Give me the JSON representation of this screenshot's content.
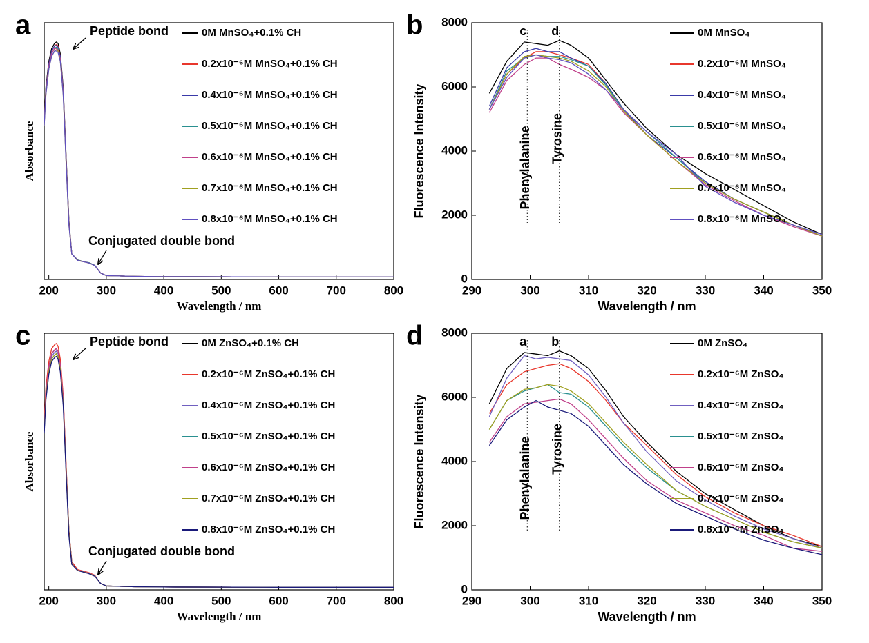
{
  "chart_data": [
    {
      "type": "line",
      "panel": "a",
      "xlabel": "Wavelength / nm",
      "ylabel": "Absorbance",
      "xlim": [
        192,
        800
      ],
      "xticks": [
        200,
        300,
        400,
        500,
        600,
        700,
        800
      ],
      "ylim": [
        0,
        1
      ],
      "annotations": [
        "Peptide bond",
        "Conjugated double bond"
      ],
      "x": [
        192,
        195,
        200,
        205,
        210,
        213,
        216,
        220,
        225,
        230,
        235,
        240,
        250,
        260,
        270,
        280,
        285,
        290,
        300,
        350,
        400,
        600,
        800
      ],
      "series": [
        {
          "name": "0M MnSO₄+0.1% CH",
          "color": "#000000",
          "values": [
            0.63,
            0.75,
            0.85,
            0.9,
            0.92,
            0.925,
            0.92,
            0.88,
            0.75,
            0.49,
            0.23,
            0.1,
            0.076,
            0.07,
            0.065,
            0.055,
            0.04,
            0.025,
            0.015,
            0.012,
            0.011,
            0.01,
            0.01
          ]
        },
        {
          "name": "0.2x10⁻⁶M MnSO₄+0.1% CH",
          "color": "#e8372c",
          "values": [
            0.62,
            0.74,
            0.84,
            0.89,
            0.91,
            0.915,
            0.91,
            0.87,
            0.74,
            0.48,
            0.22,
            0.1,
            0.075,
            0.07,
            0.065,
            0.055,
            0.04,
            0.025,
            0.015,
            0.012,
            0.011,
            0.01,
            0.01
          ]
        },
        {
          "name": "0.4x10⁻⁶M MnSO₄+0.1% CH",
          "color": "#3a3aa8",
          "values": [
            0.62,
            0.74,
            0.84,
            0.89,
            0.91,
            0.912,
            0.905,
            0.87,
            0.74,
            0.48,
            0.22,
            0.1,
            0.075,
            0.07,
            0.065,
            0.055,
            0.04,
            0.025,
            0.015,
            0.012,
            0.011,
            0.01,
            0.01
          ]
        },
        {
          "name": "0.5x10⁻⁶M MnSO₄+0.1% CH",
          "color": "#2a9090",
          "values": [
            0.61,
            0.73,
            0.83,
            0.88,
            0.9,
            0.905,
            0.9,
            0.86,
            0.73,
            0.47,
            0.22,
            0.1,
            0.075,
            0.07,
            0.065,
            0.055,
            0.04,
            0.025,
            0.015,
            0.012,
            0.011,
            0.01,
            0.01
          ]
        },
        {
          "name": "0.6x10⁻⁶M MnSO₄+0.1% CH",
          "color": "#c0408a",
          "values": [
            0.61,
            0.73,
            0.83,
            0.88,
            0.9,
            0.9,
            0.895,
            0.86,
            0.73,
            0.47,
            0.22,
            0.1,
            0.074,
            0.069,
            0.064,
            0.054,
            0.04,
            0.025,
            0.015,
            0.012,
            0.011,
            0.01,
            0.01
          ]
        },
        {
          "name": "0.7x10⁻⁶M MnSO₄+0.1% CH",
          "color": "#a0a020",
          "values": [
            0.6,
            0.72,
            0.82,
            0.87,
            0.89,
            0.895,
            0.89,
            0.85,
            0.72,
            0.46,
            0.21,
            0.1,
            0.074,
            0.069,
            0.064,
            0.054,
            0.04,
            0.025,
            0.015,
            0.012,
            0.011,
            0.01,
            0.01
          ]
        },
        {
          "name": "0.8x10⁻⁶M MnSO₄+0.1% CH",
          "color": "#6050c0",
          "values": [
            0.6,
            0.72,
            0.82,
            0.87,
            0.89,
            0.89,
            0.885,
            0.85,
            0.72,
            0.46,
            0.21,
            0.1,
            0.074,
            0.069,
            0.064,
            0.054,
            0.04,
            0.025,
            0.015,
            0.012,
            0.011,
            0.01,
            0.01
          ]
        }
      ]
    },
    {
      "type": "line",
      "panel": "b",
      "xlabel": "Wavelength / nm",
      "ylabel": "Fluorescence Intensity",
      "xlim": [
        290,
        350
      ],
      "xticks": [
        290,
        300,
        310,
        320,
        330,
        340,
        350
      ],
      "ylim": [
        0,
        8000
      ],
      "yticks": [
        0,
        2000,
        4000,
        6000,
        8000
      ],
      "markers": [
        {
          "letter": "c",
          "label": "Phenylalanine",
          "x": 299.5
        },
        {
          "letter": "d",
          "label": "Tyrosine",
          "x": 305
        }
      ],
      "x": [
        293,
        296,
        299,
        301,
        303,
        305,
        307,
        310,
        313,
        316,
        320,
        325,
        330,
        335,
        340,
        345,
        350
      ],
      "series": [
        {
          "name": "0M MnSO₄",
          "color": "#000000",
          "values": [
            5800,
            6800,
            7400,
            7350,
            7300,
            7450,
            7300,
            6900,
            6200,
            5500,
            4700,
            3900,
            3300,
            2800,
            2300,
            1800,
            1400
          ]
        },
        {
          "name": "0.2x10⁻⁶M MnSO₄",
          "color": "#e8372c",
          "values": [
            5300,
            6400,
            6900,
            7100,
            7100,
            7000,
            6900,
            6700,
            6100,
            5300,
            4500,
            3700,
            3000,
            2500,
            2100,
            1700,
            1350
          ]
        },
        {
          "name": "0.4x10⁻⁶M MnSO₄",
          "color": "#3a3aa8",
          "values": [
            5400,
            6600,
            7100,
            7200,
            7100,
            7100,
            6900,
            6650,
            6100,
            5300,
            4500,
            3800,
            3050,
            2500,
            2100,
            1700,
            1350
          ]
        },
        {
          "name": "0.5x10⁻⁶M MnSO₄",
          "color": "#2a9090",
          "values": [
            5300,
            6500,
            6900,
            7000,
            6950,
            6950,
            6850,
            6650,
            6050,
            5300,
            4600,
            3800,
            3000,
            2500,
            2100,
            1700,
            1350
          ]
        },
        {
          "name": "0.6x10⁻⁶M MnSO₄",
          "color": "#c0408a",
          "values": [
            5200,
            6200,
            6700,
            6900,
            6900,
            6700,
            6550,
            6300,
            5900,
            5200,
            4500,
            3700,
            2950,
            2450,
            2000,
            1650,
            1350
          ]
        },
        {
          "name": "0.7x10⁻⁶M MnSO₄",
          "color": "#a0a020",
          "values": [
            5300,
            6400,
            6950,
            7000,
            6950,
            6900,
            6800,
            6500,
            6000,
            5250,
            4500,
            3700,
            3000,
            2500,
            2100,
            1700,
            1350
          ]
        },
        {
          "name": "0.8x10⁻⁶M MnSO₄",
          "color": "#6050c0",
          "values": [
            5300,
            6300,
            6900,
            7000,
            6900,
            6850,
            6750,
            6400,
            5900,
            5300,
            4600,
            3900,
            2900,
            2400,
            2000,
            1700,
            1400
          ]
        }
      ]
    },
    {
      "type": "line",
      "panel": "c",
      "xlabel": "Wavelength / nm",
      "ylabel": "Absorbance",
      "xlim": [
        192,
        800
      ],
      "xticks": [
        200,
        300,
        400,
        500,
        600,
        700,
        800
      ],
      "ylim": [
        0,
        1
      ],
      "annotations": [
        "Peptide bond",
        "Conjugated double bond"
      ],
      "x": [
        192,
        195,
        200,
        205,
        210,
        213,
        216,
        220,
        225,
        230,
        235,
        240,
        250,
        260,
        270,
        280,
        285,
        290,
        300,
        350,
        400,
        600,
        800
      ],
      "series": [
        {
          "name": "0M ZnSO₄+0.1% CH",
          "color": "#000000",
          "values": [
            0.64,
            0.77,
            0.87,
            0.92,
            0.935,
            0.94,
            0.93,
            0.88,
            0.75,
            0.49,
            0.23,
            0.11,
            0.078,
            0.072,
            0.066,
            0.056,
            0.04,
            0.025,
            0.015,
            0.012,
            0.011,
            0.01,
            0.01
          ]
        },
        {
          "name": "0.2x10⁻⁶M ZnSO₄+0.1% CH",
          "color": "#e8372c",
          "values": [
            0.66,
            0.79,
            0.89,
            0.94,
            0.955,
            0.96,
            0.95,
            0.9,
            0.76,
            0.5,
            0.23,
            0.11,
            0.079,
            0.073,
            0.067,
            0.057,
            0.04,
            0.025,
            0.015,
            0.012,
            0.011,
            0.01,
            0.01
          ]
        },
        {
          "name": "0.4x10⁻⁶M ZnSO₄+0.1% CH",
          "color": "#7060c0",
          "values": [
            0.63,
            0.76,
            0.86,
            0.91,
            0.925,
            0.93,
            0.92,
            0.87,
            0.74,
            0.48,
            0.22,
            0.1,
            0.077,
            0.071,
            0.065,
            0.055,
            0.04,
            0.025,
            0.015,
            0.012,
            0.011,
            0.01,
            0.01
          ]
        },
        {
          "name": "0.5x10⁻⁶M ZnSO₄+0.1% CH",
          "color": "#2a9090",
          "values": [
            0.62,
            0.75,
            0.85,
            0.9,
            0.915,
            0.92,
            0.91,
            0.86,
            0.73,
            0.47,
            0.22,
            0.1,
            0.076,
            0.07,
            0.064,
            0.054,
            0.04,
            0.025,
            0.015,
            0.012,
            0.011,
            0.01,
            0.01
          ]
        },
        {
          "name": "0.6x10⁻⁶M ZnSO₄+0.1% CH",
          "color": "#c0408a",
          "values": [
            0.64,
            0.77,
            0.87,
            0.92,
            0.935,
            0.94,
            0.93,
            0.88,
            0.75,
            0.48,
            0.22,
            0.1,
            0.077,
            0.071,
            0.065,
            0.055,
            0.04,
            0.025,
            0.015,
            0.012,
            0.011,
            0.01,
            0.01
          ]
        },
        {
          "name": "0.7x10⁻⁶M ZnSO₄+0.1% CH",
          "color": "#a0a020",
          "values": [
            0.62,
            0.75,
            0.85,
            0.9,
            0.915,
            0.92,
            0.91,
            0.86,
            0.73,
            0.47,
            0.22,
            0.1,
            0.076,
            0.07,
            0.064,
            0.054,
            0.04,
            0.025,
            0.015,
            0.012,
            0.011,
            0.01,
            0.01
          ]
        },
        {
          "name": "0.8x10⁻⁶M ZnSO₄+0.1% CH",
          "color": "#1a1a7a",
          "values": [
            0.61,
            0.74,
            0.84,
            0.89,
            0.905,
            0.91,
            0.9,
            0.85,
            0.72,
            0.46,
            0.21,
            0.1,
            0.075,
            0.069,
            0.063,
            0.053,
            0.04,
            0.025,
            0.015,
            0.012,
            0.011,
            0.01,
            0.01
          ]
        }
      ]
    },
    {
      "type": "line",
      "panel": "d",
      "xlabel": "Wavelength / nm",
      "ylabel": "Fluorescence Intensity",
      "xlim": [
        290,
        350
      ],
      "xticks": [
        290,
        300,
        310,
        320,
        330,
        340,
        350
      ],
      "ylim": [
        0,
        8000
      ],
      "yticks": [
        0,
        2000,
        4000,
        6000,
        8000
      ],
      "markers": [
        {
          "letter": "a",
          "label": "Phenylalanine",
          "x": 299.5
        },
        {
          "letter": "b",
          "label": "Tyrosine",
          "x": 305
        }
      ],
      "x": [
        293,
        296,
        299,
        301,
        303,
        305,
        307,
        310,
        313,
        316,
        320,
        325,
        330,
        335,
        340,
        345,
        350
      ],
      "series": [
        {
          "name": "0M ZnSO₄",
          "color": "#000000",
          "values": [
            5800,
            6900,
            7400,
            7350,
            7300,
            7450,
            7300,
            6900,
            6200,
            5400,
            4600,
            3700,
            3000,
            2500,
            2000,
            1600,
            1350
          ]
        },
        {
          "name": "0.2x10⁻⁶M ZnSO₄",
          "color": "#e8372c",
          "values": [
            5500,
            6400,
            6800,
            6900,
            7000,
            7050,
            6900,
            6500,
            5900,
            5200,
            4500,
            3600,
            2900,
            2400,
            2000,
            1700,
            1350
          ]
        },
        {
          "name": "0.4x10⁻⁶M ZnSO₄",
          "color": "#7060c0",
          "values": [
            5400,
            6600,
            7300,
            7200,
            7250,
            7200,
            7150,
            6700,
            6000,
            5200,
            4300,
            3400,
            2800,
            2300,
            1900,
            1600,
            1300
          ]
        },
        {
          "name": "0.5x10⁻⁶M ZnSO₄",
          "color": "#2a9090",
          "values": [
            5000,
            5900,
            6200,
            6300,
            6400,
            6150,
            6100,
            5700,
            5100,
            4500,
            3800,
            3100,
            2600,
            2200,
            1800,
            1500,
            1300
          ]
        },
        {
          "name": "0.6x10⁻⁶M ZnSO₄",
          "color": "#c0408a",
          "values": [
            4600,
            5400,
            5800,
            5850,
            5900,
            5950,
            5800,
            5300,
            4700,
            4100,
            3400,
            2800,
            2400,
            2000,
            1700,
            1300,
            1200
          ]
        },
        {
          "name": "0.7x10⁻⁶M ZnSO₄",
          "color": "#a0a020",
          "values": [
            5000,
            5900,
            6250,
            6300,
            6400,
            6350,
            6200,
            5800,
            5200,
            4600,
            3900,
            3100,
            2600,
            2200,
            1800,
            1500,
            1300
          ]
        },
        {
          "name": "0.8x10⁻⁶M ZnSO₄",
          "color": "#1a1a7a",
          "values": [
            4500,
            5300,
            5700,
            5900,
            5700,
            5600,
            5500,
            5100,
            4500,
            3900,
            3300,
            2700,
            2300,
            1900,
            1550,
            1300,
            1100
          ]
        }
      ]
    }
  ]
}
